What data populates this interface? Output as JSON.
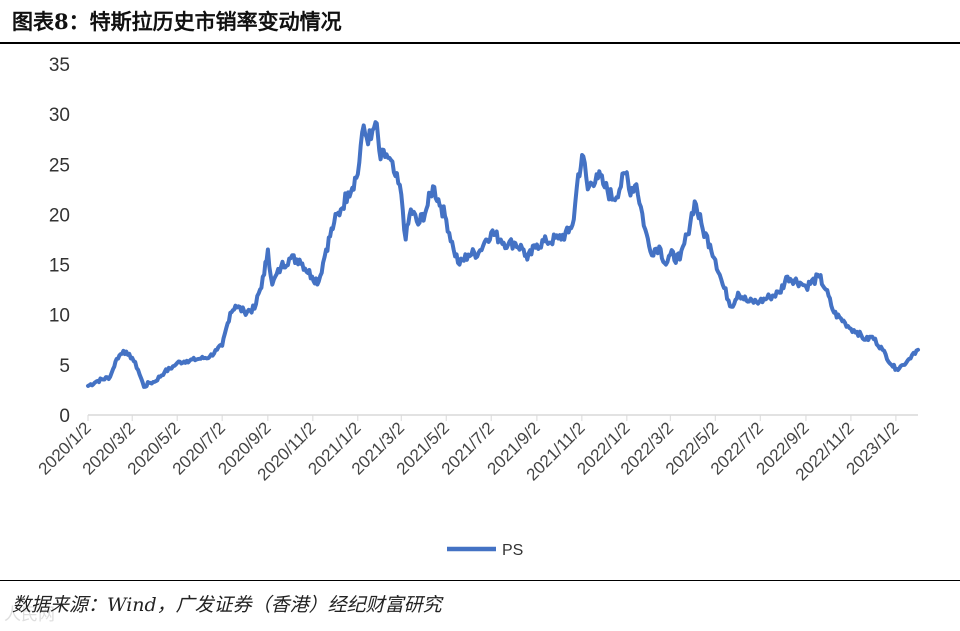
{
  "header": {
    "title": "图表8：特斯拉历史市销率变动情况"
  },
  "footer": {
    "source": "数据来源：Wind，广发证券（香港）经纪财富研究",
    "watermark": "人民网"
  },
  "colors": {
    "series": "#4472C4",
    "axis": "#d9d9d9",
    "text": "#333333"
  },
  "chart_data": {
    "type": "line",
    "title": "图表8：特斯拉历史市销率变动情况",
    "xlabel": "",
    "ylabel": "",
    "ylim": [
      0,
      35
    ],
    "yticks": [
      0,
      5,
      10,
      15,
      20,
      25,
      30,
      35
    ],
    "xlim": [
      "2020-01-02",
      "2023-02-01"
    ],
    "xtick_labels": [
      "2020/1/2",
      "2020/3/2",
      "2020/5/2",
      "2020/7/2",
      "2020/9/2",
      "2020/11/2",
      "2021/1/2",
      "2021/3/2",
      "2021/5/2",
      "2021/7/2",
      "2021/9/2",
      "2021/11/2",
      "2022/1/2",
      "2022/3/2",
      "2022/5/2",
      "2022/7/2",
      "2022/9/2",
      "2022/11/2",
      "2023/1/2"
    ],
    "legend": {
      "placement": "bottom-center",
      "entries": [
        "PS"
      ]
    },
    "grid": false,
    "series": [
      {
        "name": "PS",
        "points": [
          [
            "2020-01-02",
            2.9
          ],
          [
            "2020-01-15",
            3.4
          ],
          [
            "2020-02-01",
            3.8
          ],
          [
            "2020-02-05",
            4.6
          ],
          [
            "2020-02-10",
            5.6
          ],
          [
            "2020-02-19",
            6.4
          ],
          [
            "2020-02-25",
            6.0
          ],
          [
            "2020-03-02",
            5.7
          ],
          [
            "2020-03-10",
            4.5
          ],
          [
            "2020-03-18",
            2.8
          ],
          [
            "2020-03-25",
            3.2
          ],
          [
            "2020-04-01",
            3.3
          ],
          [
            "2020-04-15",
            4.3
          ],
          [
            "2020-04-28",
            4.9
          ],
          [
            "2020-05-02",
            5.2
          ],
          [
            "2020-05-15",
            5.4
          ],
          [
            "2020-06-01",
            5.6
          ],
          [
            "2020-06-15",
            5.8
          ],
          [
            "2020-06-25",
            6.5
          ],
          [
            "2020-07-02",
            6.9
          ],
          [
            "2020-07-13",
            10.2
          ],
          [
            "2020-07-20",
            10.9
          ],
          [
            "2020-08-01",
            10.3
          ],
          [
            "2020-08-15",
            10.6
          ],
          [
            "2020-08-28",
            14.0
          ],
          [
            "2020-09-02",
            16.5
          ],
          [
            "2020-09-08",
            13.0
          ],
          [
            "2020-09-20",
            14.8
          ],
          [
            "2020-10-01",
            15.6
          ],
          [
            "2020-10-15",
            15.5
          ],
          [
            "2020-11-01",
            13.8
          ],
          [
            "2020-11-10",
            13.3
          ],
          [
            "2020-11-20",
            16.5
          ],
          [
            "2020-12-01",
            19.2
          ],
          [
            "2020-12-10",
            20.5
          ],
          [
            "2020-12-20",
            22.2
          ],
          [
            "2021-01-02",
            24.0
          ],
          [
            "2021-01-08",
            28.2
          ],
          [
            "2021-01-20",
            27.5
          ],
          [
            "2021-01-26",
            29.2
          ],
          [
            "2021-02-02",
            25.5
          ],
          [
            "2021-02-10",
            26.0
          ],
          [
            "2021-02-20",
            24.2
          ],
          [
            "2021-03-02",
            22.0
          ],
          [
            "2021-03-08",
            17.5
          ],
          [
            "2021-03-15",
            20.5
          ],
          [
            "2021-03-25",
            19.0
          ],
          [
            "2021-04-05",
            20.5
          ],
          [
            "2021-04-14",
            22.8
          ],
          [
            "2021-04-25",
            20.8
          ],
          [
            "2021-05-02",
            19.5
          ],
          [
            "2021-05-12",
            16.5
          ],
          [
            "2021-05-20",
            15.0
          ],
          [
            "2021-06-01",
            16.0
          ],
          [
            "2021-06-15",
            16.2
          ],
          [
            "2021-06-25",
            17.5
          ],
          [
            "2021-07-02",
            18.2
          ],
          [
            "2021-07-15",
            17.5
          ],
          [
            "2021-07-25",
            17.0
          ],
          [
            "2021-08-02",
            17.2
          ],
          [
            "2021-08-15",
            16.5
          ],
          [
            "2021-08-20",
            15.5
          ],
          [
            "2021-09-02",
            17.0
          ],
          [
            "2021-09-15",
            17.3
          ],
          [
            "2021-10-01",
            17.6
          ],
          [
            "2021-10-15",
            18.2
          ],
          [
            "2021-10-22",
            19.5
          ],
          [
            "2021-10-28",
            24.0
          ],
          [
            "2021-11-04",
            25.8
          ],
          [
            "2021-11-10",
            22.5
          ],
          [
            "2021-11-22",
            24.0
          ],
          [
            "2021-12-01",
            23.0
          ],
          [
            "2021-12-15",
            21.5
          ],
          [
            "2022-01-02",
            24.2
          ],
          [
            "2022-01-05",
            22.5
          ],
          [
            "2022-01-15",
            23.0
          ],
          [
            "2022-01-27",
            18.5
          ],
          [
            "2022-02-03",
            16.3
          ],
          [
            "2022-02-15",
            16.8
          ],
          [
            "2022-02-24",
            15.0
          ],
          [
            "2022-03-02",
            16.0
          ],
          [
            "2022-03-15",
            15.5
          ],
          [
            "2022-03-25",
            18.0
          ],
          [
            "2022-04-04",
            21.3
          ],
          [
            "2022-04-15",
            18.5
          ],
          [
            "2022-04-25",
            17.0
          ],
          [
            "2022-05-02",
            15.5
          ],
          [
            "2022-05-12",
            13.0
          ],
          [
            "2022-05-24",
            10.8
          ],
          [
            "2022-06-02",
            12.2
          ],
          [
            "2022-06-15",
            11.3
          ],
          [
            "2022-07-01",
            11.3
          ],
          [
            "2022-07-15",
            11.8
          ],
          [
            "2022-07-28",
            12.2
          ],
          [
            "2022-08-08",
            13.8
          ],
          [
            "2022-08-25",
            13.2
          ],
          [
            "2022-09-02",
            12.8
          ],
          [
            "2022-09-20",
            13.8
          ],
          [
            "2022-09-29",
            12.5
          ],
          [
            "2022-10-10",
            10.2
          ],
          [
            "2022-10-25",
            9.2
          ],
          [
            "2022-11-02",
            8.6
          ],
          [
            "2022-11-10",
            8.3
          ],
          [
            "2022-11-22",
            7.5
          ],
          [
            "2022-12-01",
            7.8
          ],
          [
            "2022-12-15",
            6.5
          ],
          [
            "2022-12-27",
            5.0
          ],
          [
            "2023-01-03",
            4.6
          ],
          [
            "2023-01-12",
            5.0
          ],
          [
            "2023-01-20",
            5.6
          ],
          [
            "2023-01-26",
            6.2
          ],
          [
            "2023-02-01",
            6.5
          ]
        ]
      }
    ]
  }
}
